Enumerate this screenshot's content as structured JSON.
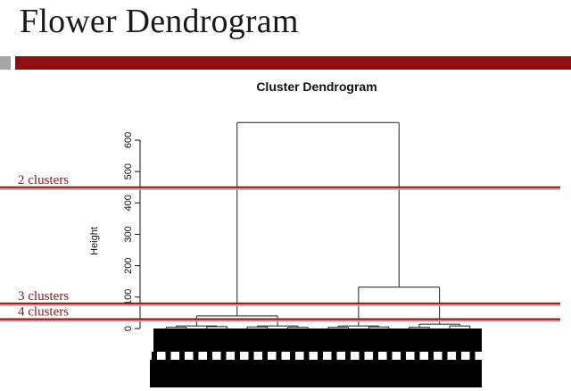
{
  "slide": {
    "title": "Flower Dendrogram"
  },
  "chart_data": {
    "type": "dendrogram",
    "title": "Cluster Dendrogram",
    "ylabel": "Height",
    "ylim": [
      0,
      650
    ],
    "yticks": [
      0,
      100,
      200,
      300,
      400,
      500,
      600
    ],
    "tree": {
      "height": 656,
      "left": {
        "height": 40,
        "left": {
          "height": 8,
          "left": {
            "height": 4,
            "left": {
              "height": 0
            },
            "right": {
              "height": 0
            }
          },
          "right": {
            "height": 6,
            "left": {
              "height": 0
            },
            "right": {
              "height": 0
            }
          }
        },
        "right": {
          "height": 8,
          "left": {
            "height": 5,
            "left": {
              "height": 0
            },
            "right": {
              "height": 0
            }
          },
          "right": {
            "height": 4,
            "left": {
              "height": 0
            },
            "right": {
              "height": 0
            }
          }
        }
      },
      "right": {
        "height": 132,
        "left": {
          "height": 8,
          "left": {
            "height": 4,
            "left": {
              "height": 0
            },
            "right": {
              "height": 0
            }
          },
          "right": {
            "height": 5,
            "left": {
              "height": 0
            },
            "right": {
              "height": 0
            }
          }
        },
        "right": {
          "height": 14,
          "left": {
            "height": 4,
            "left": {
              "height": 0
            },
            "right": {
              "height": 0
            }
          },
          "right": {
            "height": 8,
            "left": {
              "height": 0
            },
            "right": {
              "height": 0
            }
          }
        }
      }
    },
    "cut_lines": [
      {
        "label": "2 clusters",
        "height": 450
      },
      {
        "label": "3 clusters",
        "height": 80
      },
      {
        "label": "4 clusters",
        "height": 30
      }
    ],
    "colors": {
      "cut_line": "#8b1a1a",
      "leaf_mass": "#000000"
    }
  }
}
